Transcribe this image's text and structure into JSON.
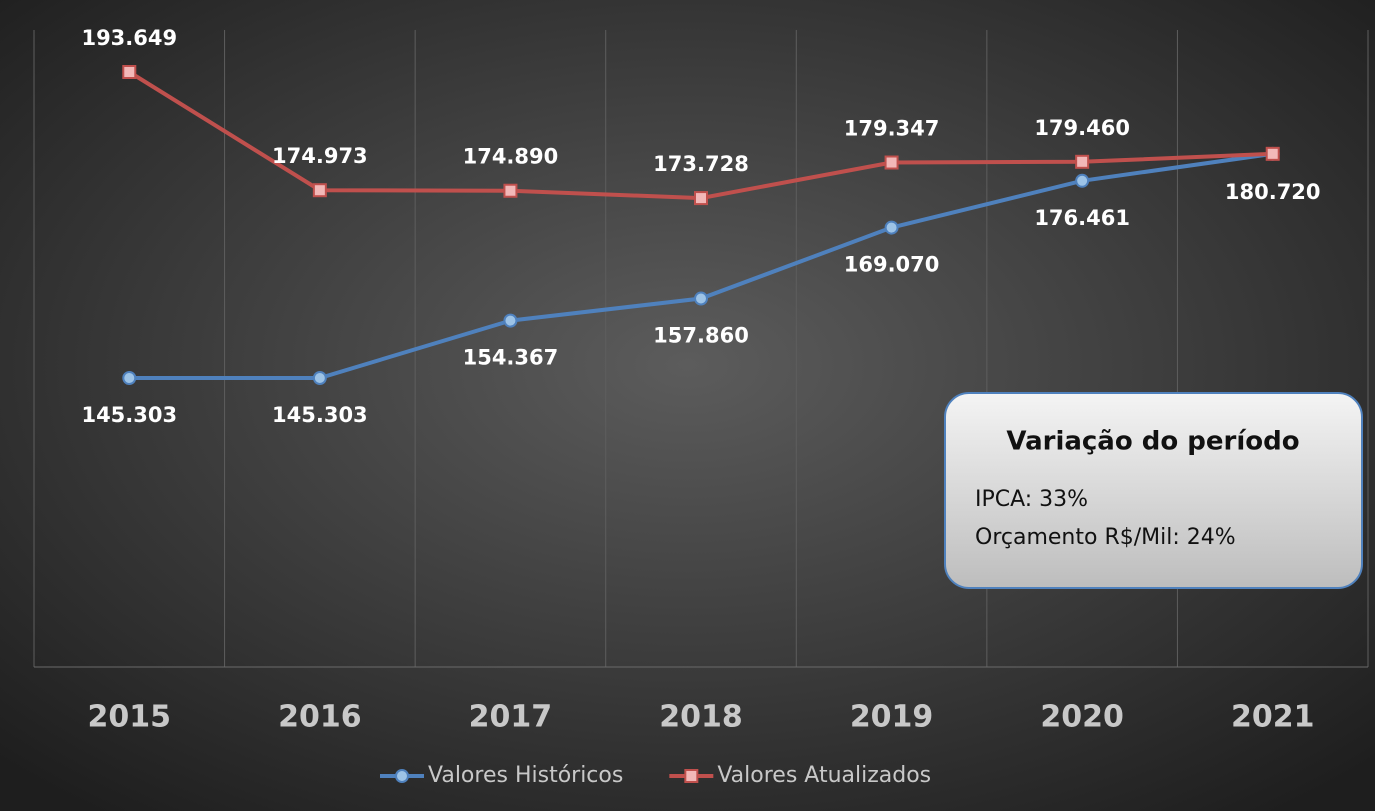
{
  "chart_data": {
    "type": "line",
    "categories": [
      "2015",
      "2016",
      "2017",
      "2018",
      "2019",
      "2020",
      "2021"
    ],
    "series": [
      {
        "name": "Valores Históricos",
        "color": "#4f81bd",
        "marker": "circle",
        "values": [
          145303,
          145303,
          154367,
          157860,
          169070,
          176461,
          180720
        ],
        "value_labels": [
          "145.303",
          "145.303",
          "154.367",
          "157.860",
          "169.070",
          "176.461",
          null
        ]
      },
      {
        "name": "Valores Atualizados",
        "color": "#c0504d",
        "marker": "square",
        "values": [
          193649,
          174973,
          174890,
          173728,
          179347,
          179460,
          180720
        ],
        "value_labels": [
          "193.649",
          "174.973",
          "174.890",
          "173.728",
          "179.347",
          "179.460",
          "180.720"
        ]
      }
    ],
    "annotation": {
      "title": "Variação do período",
      "lines": [
        "IPCA: 33%",
        "Orçamento R$/Mil: 24%"
      ]
    },
    "grid": true,
    "legend": "bottom"
  }
}
